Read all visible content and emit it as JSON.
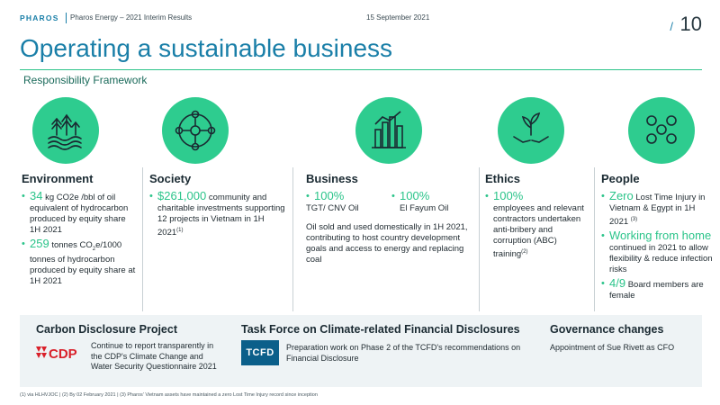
{
  "header": {
    "logo": "PHAROS",
    "subtitle": "Pharos Energy – 2021 Interim Results",
    "date": "15 September 2021",
    "slash": "/",
    "page_number": "10"
  },
  "title": "Operating a sustainable business",
  "section_label": "Responsibility Framework",
  "icons": [
    "environment-icon",
    "society-icon",
    "business-icon",
    "ethics-icon",
    "people-icon"
  ],
  "colors": {
    "accent": "#2bc48a",
    "brand": "#1a7fa8",
    "icon_bg": "#2ecc8f",
    "band_bg": "#eef3f5",
    "tcfd": "#0b5f8a"
  },
  "environment": {
    "heading": "Environment",
    "b1_value": "34",
    "b1_text_a": " kg CO2e /bbl of oil equivalent of hydrocarbon produced by equity share 1H 2021",
    "b2_value": "259",
    "b2_text_a": " tonnes CO",
    "b2_sub": "2",
    "b2_text_b": "e/1000 tonnes of hydrocarbon produced by equity share at 1H 2021"
  },
  "society": {
    "heading": "Society",
    "b1_value": "$261,000",
    "b1_text": " community and charitable investments supporting 12 projects in Vietnam in 1H 2021",
    "b1_sup": "(1)"
  },
  "business": {
    "heading": "Business",
    "items": [
      {
        "value": "100%",
        "label": "TGT/ CNV Oil"
      },
      {
        "value": "100%",
        "label": "El Fayum Oil"
      }
    ],
    "text": "Oil sold and used domestically in 1H 2021, contributing to host country development goals and access to energy and replacing coal"
  },
  "ethics": {
    "heading": "Ethics",
    "b1_value": "100%",
    "b1_text": "employees and relevant contractors undertaken anti-bribery and corruption (ABC) training",
    "b1_sup": "(2)"
  },
  "people": {
    "heading": "People",
    "b1_value": "Zero",
    "b1_text": " Lost Time Injury in Vietnam & Egypt in 1H 2021 ",
    "b1_sup": "(3)",
    "b2_value": "Working from home",
    "b2_text": " continued in 2021 to allow flexibility & reduce infection risks",
    "b3_value": "4/9",
    "b3_text": " Board members are female"
  },
  "cdp": {
    "heading": "Carbon Disclosure Project",
    "logo_text": "CDP",
    "text": "Continue to report transparently in the CDP's Climate Change and Water Security Questionnaire 2021"
  },
  "tcfd": {
    "heading": "Task Force on Climate-related Financial Disclosures",
    "logo_text": "TCFD",
    "text": "Preparation work on Phase 2 of the TCFD's recommendations on Financial Disclosure"
  },
  "governance": {
    "heading": "Governance changes",
    "text": "Appointment of Sue Rivett as CFO"
  },
  "footnote": "(1) via HLHVJOC | (2) By 02 February 2021 | (3) Pharos' Vietnam assets have maintained a zero Lost Time Injury record since inception"
}
